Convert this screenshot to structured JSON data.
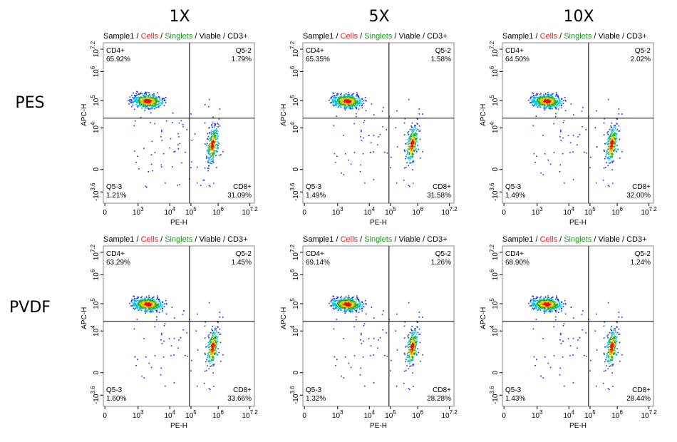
{
  "columns": [
    "1X",
    "5X",
    "10X"
  ],
  "rows": [
    "PES",
    "PVDF"
  ],
  "gate": {
    "separator": "/",
    "parts": [
      {
        "text": "Sample1",
        "color": "#000000"
      },
      {
        "text": "Cells",
        "color": "#e02020"
      },
      {
        "text": "Singlets",
        "color": "#1a9a1a"
      },
      {
        "text": "Viable",
        "color": "#000000"
      },
      {
        "text": "CD3+",
        "color": "#000000"
      }
    ]
  },
  "x_axis": {
    "label": "PE-H",
    "ticks": [
      {
        "base": "0"
      },
      {
        "base": "10",
        "exp": "3"
      },
      {
        "base": "10",
        "exp": "4"
      },
      {
        "base": "10",
        "exp": "5"
      },
      {
        "base": "10",
        "exp": "6"
      },
      {
        "base": "10",
        "exp": "7.2"
      }
    ]
  },
  "y_axis": {
    "label": "APC-H",
    "ticks": [
      {
        "base": "-10",
        "exp": "3.6"
      },
      {
        "base": "0"
      },
      {
        "base": "10",
        "exp": "4"
      },
      {
        "base": "10",
        "exp": "5"
      },
      {
        "base": "10",
        "exp": "6"
      },
      {
        "base": "10",
        "exp": "7.2"
      }
    ]
  },
  "panels": [
    [
      {
        "quadrants": [
          {
            "name": "CD4+",
            "percent": "65.92%"
          },
          {
            "name": "Q5-2",
            "percent": "1.79%"
          },
          {
            "name": "Q5-3",
            "percent": "1.21%"
          },
          {
            "name": "CD8+",
            "percent": "31.09%"
          }
        ]
      },
      {
        "quadrants": [
          {
            "name": "CD4+",
            "percent": "65.35%"
          },
          {
            "name": "Q5-2",
            "percent": "1.58%"
          },
          {
            "name": "Q5-3",
            "percent": "1.49%"
          },
          {
            "name": "CD8+",
            "percent": "31.58%"
          }
        ]
      },
      {
        "quadrants": [
          {
            "name": "CD4+",
            "percent": "64.50%"
          },
          {
            "name": "Q5-2",
            "percent": "2.02%"
          },
          {
            "name": "Q5-3",
            "percent": "1.49%"
          },
          {
            "name": "CD8+",
            "percent": "32.00%"
          }
        ]
      }
    ],
    [
      {
        "quadrants": [
          {
            "name": "CD4+",
            "percent": "63.29%"
          },
          {
            "name": "Q5-2",
            "percent": "1.45%"
          },
          {
            "name": "Q5-3",
            "percent": "1.60%"
          },
          {
            "name": "CD8+",
            "percent": "33.66%"
          }
        ]
      },
      {
        "quadrants": [
          {
            "name": "CD4+",
            "percent": "69.14%"
          },
          {
            "name": "Q5-2",
            "percent": "1.26%"
          },
          {
            "name": "Q5-3",
            "percent": "1.32%"
          },
          {
            "name": "CD8+",
            "percent": "28.28%"
          }
        ]
      },
      {
        "quadrants": [
          {
            "name": "CD4+",
            "percent": "68.90%"
          },
          {
            "name": "Q5-2",
            "percent": "1.24%"
          },
          {
            "name": "Q5-3",
            "percent": "1.43%"
          },
          {
            "name": "CD8+",
            "percent": "28.44%"
          }
        ]
      }
    ]
  ]
}
